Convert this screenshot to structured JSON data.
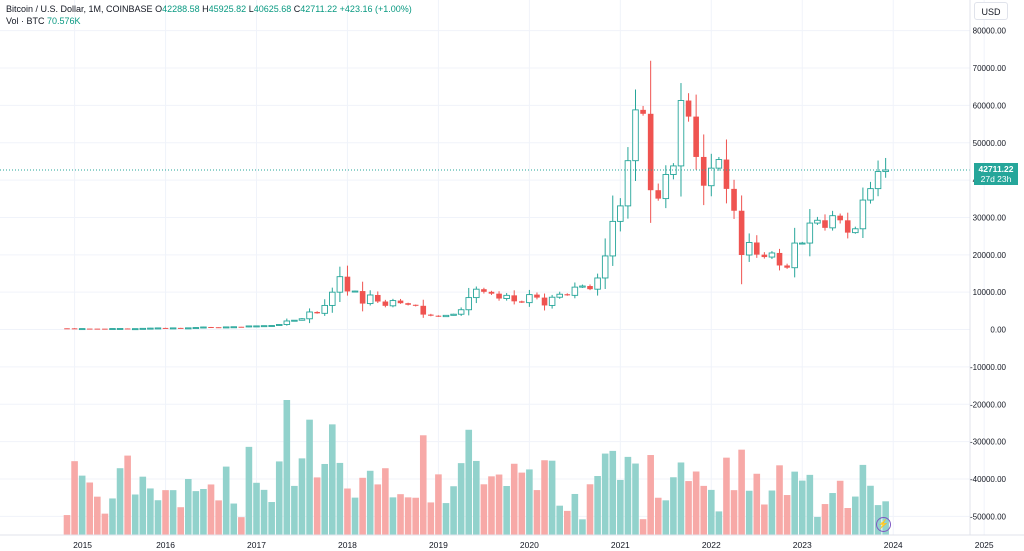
{
  "legend": {
    "symbol": "Bitcoin / U.S. Dollar, 1M, COINBASE",
    "o_label": "O",
    "o": "42288.58",
    "h_label": "H",
    "h": "45925.82",
    "l_label": "L",
    "l": "40625.68",
    "c_label": "C",
    "c": "42711.22",
    "change": "+423.16 (+1.00%)",
    "vol_label": "Vol · BTC",
    "vol": "70.576K"
  },
  "currency_button": "USD",
  "last_price": {
    "value": "42711.22",
    "countdown": "27d 23h"
  },
  "colors": {
    "up": "#26a69a",
    "down": "#ef5350",
    "vol_up": "#92d2cc",
    "vol_down": "#f7a9a7",
    "accent": "#7e57c2"
  },
  "chart_data": {
    "type": "candlestick",
    "interval": "1M",
    "start": "2014-12",
    "price_axis": {
      "min": -55000,
      "max": 85000,
      "ticks": [
        "80000.00",
        "70000.00",
        "60000.00",
        "50000.00",
        "40000.00",
        "30000.00",
        "20000.00",
        "10000.00",
        "0.00",
        "-10000.00",
        "-20000.00",
        "-30000.00",
        "-40000.00",
        "-50000.00"
      ]
    },
    "x_ticks": [
      "2015",
      "2016",
      "2017",
      "2018",
      "2019",
      "2020",
      "2021",
      "2022",
      "2023",
      "2024",
      "2025"
    ],
    "closes": [
      320,
      217,
      254,
      244,
      236,
      230,
      263,
      285,
      230,
      237,
      314,
      378,
      430,
      368,
      437,
      416,
      448,
      531,
      675,
      624,
      608,
      698,
      745,
      740,
      964,
      970,
      1035,
      1080,
      1350,
      2290,
      2490,
      2880,
      4700,
      4340,
      6450,
      10000,
      14150,
      10200,
      10300,
      6950,
      9250,
      7500,
      6350,
      7750,
      7050,
      6630,
      6350,
      4000,
      3700,
      3450,
      3800,
      4100,
      5300,
      8550,
      10800,
      10100,
      9600,
      8300,
      9150,
      7550,
      7200,
      9350,
      8550,
      6450,
      8650,
      9450,
      9150,
      11350,
      11650,
      10800,
      13800,
      19700,
      28950,
      33100,
      45200,
      58800,
      57750,
      37300,
      35050,
      41500,
      43800,
      61300,
      57000,
      46200,
      38500,
      43200,
      45500,
      37650,
      31800,
      19950,
      23300,
      20050,
      19400,
      20500,
      17150,
      16550,
      23150,
      23150,
      28500,
      29250,
      27220,
      30480,
      29240,
      25940,
      26970,
      34660,
      37720,
      42288,
      42711
    ],
    "volume_max": 160000
  }
}
